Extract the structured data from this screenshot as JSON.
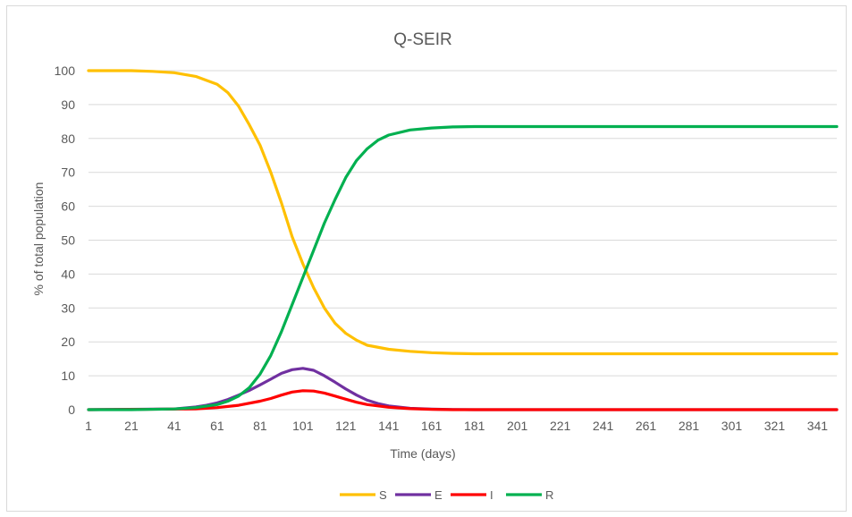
{
  "chart_data": {
    "type": "line",
    "title": "Q-SEIR",
    "xlabel": "Time (days)",
    "ylabel": "% of total population",
    "xlim": [
      1,
      350
    ],
    "ylim": [
      0,
      100
    ],
    "x_ticks": [
      1,
      21,
      41,
      61,
      81,
      101,
      121,
      141,
      161,
      181,
      201,
      221,
      241,
      261,
      281,
      301,
      321,
      341
    ],
    "y_ticks": [
      0,
      10,
      20,
      30,
      40,
      50,
      60,
      70,
      80,
      90,
      100
    ],
    "grid": "horizontal",
    "legend": "bottom",
    "series": [
      {
        "name": "S",
        "color": "#FFC000",
        "points": [
          [
            1,
            100
          ],
          [
            21,
            100
          ],
          [
            31,
            99.8
          ],
          [
            41,
            99.4
          ],
          [
            51,
            98.3
          ],
          [
            61,
            96
          ],
          [
            66,
            93.5
          ],
          [
            71,
            89.5
          ],
          [
            76,
            84
          ],
          [
            81,
            78
          ],
          [
            86,
            70
          ],
          [
            91,
            61
          ],
          [
            96,
            51
          ],
          [
            101,
            43
          ],
          [
            106,
            36
          ],
          [
            111,
            30
          ],
          [
            116,
            25.5
          ],
          [
            121,
            22.5
          ],
          [
            126,
            20.5
          ],
          [
            131,
            19
          ],
          [
            141,
            17.8
          ],
          [
            151,
            17.2
          ],
          [
            161,
            16.8
          ],
          [
            171,
            16.6
          ],
          [
            181,
            16.5
          ],
          [
            350,
            16.5
          ]
        ]
      },
      {
        "name": "E",
        "color": "#7030A0",
        "points": [
          [
            1,
            0
          ],
          [
            41,
            0.2
          ],
          [
            51,
            0.8
          ],
          [
            56,
            1.3
          ],
          [
            61,
            2
          ],
          [
            66,
            3
          ],
          [
            71,
            4.3
          ],
          [
            76,
            5.7
          ],
          [
            81,
            7.3
          ],
          [
            86,
            9
          ],
          [
            91,
            10.7
          ],
          [
            96,
            11.8
          ],
          [
            101,
            12.2
          ],
          [
            106,
            11.6
          ],
          [
            111,
            10
          ],
          [
            116,
            8.1
          ],
          [
            121,
            6.1
          ],
          [
            126,
            4.3
          ],
          [
            131,
            2.8
          ],
          [
            136,
            1.8
          ],
          [
            141,
            1.1
          ],
          [
            151,
            0.4
          ],
          [
            161,
            0.15
          ],
          [
            171,
            0.05
          ],
          [
            181,
            0
          ],
          [
            350,
            0
          ]
        ]
      },
      {
        "name": "I",
        "color": "#FF0000",
        "points": [
          [
            1,
            0
          ],
          [
            51,
            0.2
          ],
          [
            61,
            0.6
          ],
          [
            71,
            1.3
          ],
          [
            81,
            2.5
          ],
          [
            86,
            3.3
          ],
          [
            91,
            4.3
          ],
          [
            96,
            5.2
          ],
          [
            101,
            5.6
          ],
          [
            106,
            5.5
          ],
          [
            111,
            4.9
          ],
          [
            116,
            4
          ],
          [
            121,
            3.1
          ],
          [
            126,
            2.2
          ],
          [
            131,
            1.5
          ],
          [
            141,
            0.7
          ],
          [
            151,
            0.3
          ],
          [
            161,
            0.1
          ],
          [
            171,
            0
          ],
          [
            350,
            0
          ]
        ]
      },
      {
        "name": "R",
        "color": "#00B050",
        "points": [
          [
            1,
            0
          ],
          [
            21,
            0
          ],
          [
            41,
            0.2
          ],
          [
            51,
            0.6
          ],
          [
            61,
            1.5
          ],
          [
            66,
            2.5
          ],
          [
            71,
            4
          ],
          [
            76,
            6.5
          ],
          [
            81,
            10.5
          ],
          [
            86,
            16
          ],
          [
            91,
            23
          ],
          [
            96,
            31
          ],
          [
            101,
            39
          ],
          [
            106,
            47
          ],
          [
            111,
            55
          ],
          [
            116,
            62
          ],
          [
            121,
            68.5
          ],
          [
            126,
            73.5
          ],
          [
            131,
            77
          ],
          [
            136,
            79.5
          ],
          [
            141,
            81
          ],
          [
            151,
            82.5
          ],
          [
            161,
            83.1
          ],
          [
            171,
            83.4
          ],
          [
            181,
            83.5
          ],
          [
            350,
            83.5
          ]
        ]
      }
    ]
  }
}
